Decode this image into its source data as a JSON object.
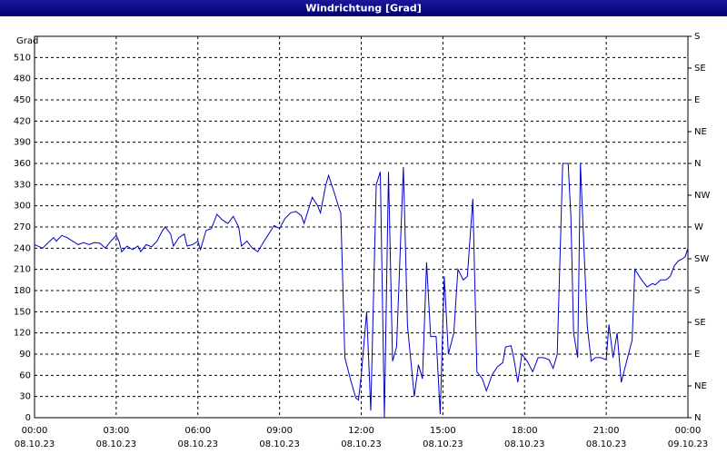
{
  "chart_data": {
    "type": "line",
    "title": "Windrichtung [Grad]",
    "y_label": "Grad",
    "xlim": [
      0,
      24
    ],
    "ylim": [
      0,
      540
    ],
    "y2lim": [
      0,
      540
    ],
    "xticks": [
      {
        "value": 0,
        "label": "00:00"
      },
      {
        "value": 3,
        "label": "03:00"
      },
      {
        "value": 6,
        "label": "06:00"
      },
      {
        "value": 9,
        "label": "09:00"
      },
      {
        "value": 12,
        "label": "12:00"
      },
      {
        "value": 15,
        "label": "15:00"
      },
      {
        "value": 18,
        "label": "18:00"
      },
      {
        "value": 21,
        "label": "21:00"
      },
      {
        "value": 24,
        "label": "00:00"
      }
    ],
    "xtick_dates": [
      "08.10.23",
      "08.10.23",
      "08.10.23",
      "08.10.23",
      "08.10.23",
      "08.10.23",
      "08.10.23",
      "08.10.23",
      "09.10.23"
    ],
    "yticks": [
      0,
      30,
      60,
      90,
      120,
      150,
      180,
      210,
      240,
      270,
      300,
      330,
      360,
      390,
      420,
      450,
      480,
      510
    ],
    "y2ticks": [
      {
        "value": 0,
        "label": "N"
      },
      {
        "value": 45,
        "label": "NE"
      },
      {
        "value": 90,
        "label": "E"
      },
      {
        "value": 135,
        "label": "SE"
      },
      {
        "value": 180,
        "label": "S"
      },
      {
        "value": 225,
        "label": "SW"
      },
      {
        "value": 270,
        "label": "W"
      },
      {
        "value": 315,
        "label": "NW"
      },
      {
        "value": 360,
        "label": "N"
      },
      {
        "value": 405,
        "label": "NE"
      },
      {
        "value": 450,
        "label": "E"
      },
      {
        "value": 495,
        "label": "SE"
      },
      {
        "value": 540,
        "label": "S"
      }
    ],
    "grid": true,
    "color": "#0000cc",
    "x": [
      0,
      0.3,
      0.5,
      0.7,
      0.8,
      1.0,
      1.2,
      1.4,
      1.6,
      1.8,
      2.0,
      2.2,
      2.4,
      2.6,
      2.8,
      3.0,
      3.1,
      3.2,
      3.4,
      3.6,
      3.8,
      3.9,
      4.1,
      4.3,
      4.5,
      4.7,
      4.8,
      5.0,
      5.1,
      5.3,
      5.5,
      5.6,
      5.8,
      6.0,
      6.1,
      6.3,
      6.5,
      6.7,
      6.9,
      7.1,
      7.3,
      7.5,
      7.6,
      7.8,
      8.0,
      8.2,
      8.4,
      8.6,
      8.8,
      9.0,
      9.2,
      9.4,
      9.6,
      9.8,
      9.9,
      10.1,
      10.2,
      10.4,
      10.5,
      10.7,
      10.8,
      11.0,
      11.2,
      11.25,
      11.4,
      11.6,
      11.8,
      11.9,
      12.0,
      12.2,
      12.35,
      12.55,
      12.7,
      12.85,
      13.0,
      13.15,
      13.3,
      13.55,
      13.7,
      13.95,
      14.1,
      14.25,
      14.4,
      14.55,
      14.75,
      14.9,
      15.05,
      15.2,
      15.4,
      15.55,
      15.75,
      15.9,
      16.1,
      16.25,
      16.45,
      16.6,
      16.8,
      17.0,
      17.2,
      17.3,
      17.5,
      17.6,
      17.75,
      17.9,
      18.1,
      18.3,
      18.5,
      18.7,
      18.9,
      19.05,
      19.2,
      19.4,
      19.6,
      19.7,
      19.8,
      19.95,
      20.05,
      20.3,
      20.45,
      20.6,
      20.8,
      21.0,
      21.1,
      21.25,
      21.4,
      21.55,
      21.75,
      21.95,
      22.05,
      22.3,
      22.5,
      22.7,
      22.8,
      23.0,
      23.2,
      23.35,
      23.5,
      23.65,
      23.8,
      23.9,
      24.0
    ],
    "values": [
      245,
      240,
      248,
      255,
      250,
      258,
      255,
      250,
      245,
      248,
      245,
      248,
      247,
      240,
      250,
      258,
      250,
      235,
      243,
      238,
      243,
      235,
      245,
      242,
      250,
      265,
      270,
      260,
      243,
      255,
      260,
      243,
      245,
      250,
      238,
      265,
      268,
      288,
      280,
      275,
      285,
      270,
      243,
      250,
      240,
      235,
      248,
      260,
      272,
      268,
      282,
      290,
      292,
      286,
      275,
      300,
      312,
      300,
      290,
      330,
      343,
      320,
      295,
      290,
      85,
      55,
      28,
      25,
      60,
      150,
      10,
      330,
      348,
      0,
      348,
      80,
      100,
      355,
      130,
      30,
      75,
      55,
      220,
      115,
      115,
      5,
      200,
      90,
      120,
      210,
      195,
      200,
      310,
      65,
      55,
      38,
      60,
      72,
      78,
      100,
      102,
      85,
      50,
      90,
      80,
      65,
      85,
      85,
      82,
      70,
      90,
      360,
      360,
      285,
      120,
      85,
      360,
      130,
      80,
      85,
      85,
      82,
      132,
      85,
      120,
      50,
      80,
      110,
      210,
      195,
      185,
      190,
      188,
      195,
      195,
      200,
      215,
      222,
      225,
      228,
      240
    ]
  }
}
